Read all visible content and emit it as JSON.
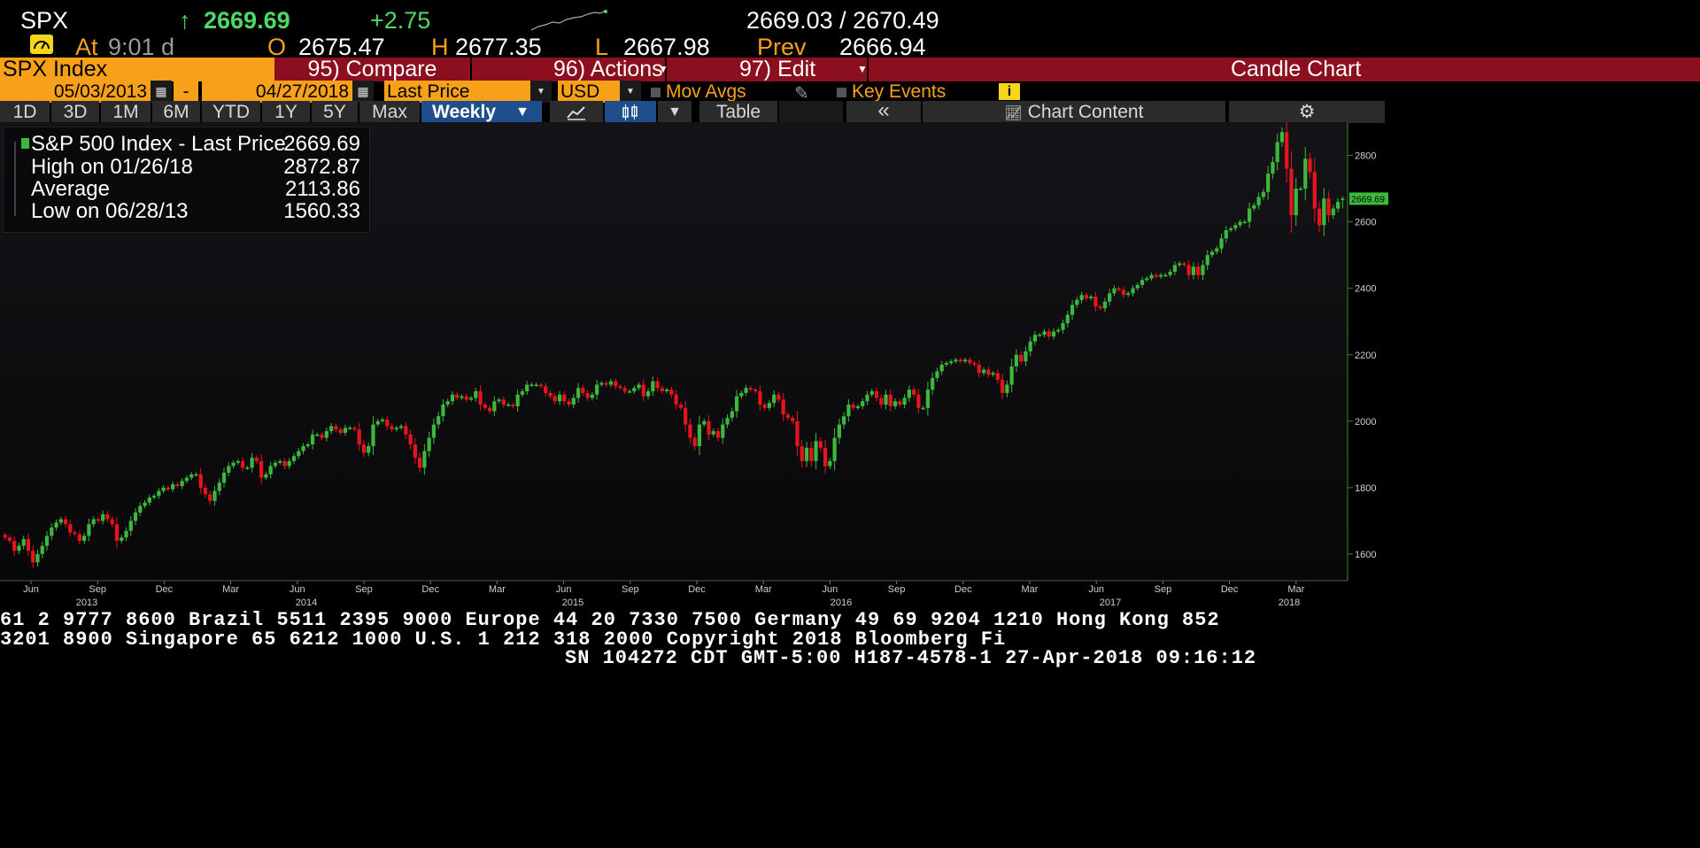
{
  "quote": {
    "ticker": "SPX",
    "arrow": "↑",
    "last": "2669.69",
    "change": "+2.75",
    "bid_ask": "2669.03 / 2670.49",
    "at_label": "At",
    "at_time": "9:01 d",
    "open_label": "O",
    "open": "2675.47",
    "high_label": "H",
    "high": "2677.35",
    "low_label": "L",
    "low": "2667.98",
    "prev_label": "Prev",
    "prev": "2666.94"
  },
  "toolbar": {
    "security": "SPX Index",
    "compare": "95) Compare",
    "actions": "96) Actions",
    "edit": "97) Edit",
    "chart_type": "Candle Chart"
  },
  "controls": {
    "start_date": "05/03/2013",
    "dash": "-",
    "end_date": "04/27/2018",
    "field": "Last Price",
    "currency": "USD",
    "mov_avgs": "Mov Avgs",
    "key_events": "Key Events",
    "info": "i"
  },
  "tabs": {
    "periods": [
      "1D",
      "3D",
      "1M",
      "6M",
      "YTD",
      "1Y",
      "5Y",
      "Max"
    ],
    "frequency": "Weekly",
    "table": "Table",
    "collapse": "«",
    "chart_content": "Chart Content"
  },
  "legend": {
    "rows": [
      {
        "label": "S&P 500 Index - Last Price",
        "value": "2669.69"
      },
      {
        "label": "High on 01/26/18",
        "value": "2872.87"
      },
      {
        "label": "Average",
        "value": "2113.86"
      },
      {
        "label": "Low on 06/28/13",
        "value": "1560.33"
      }
    ]
  },
  "colors": {
    "up": "#3cb93c",
    "down": "#e8141c",
    "accent": "#f7a11a",
    "bar_red": "#8b0f1e"
  },
  "chart_data": {
    "type": "candlestick",
    "frequency": "Weekly",
    "series_name": "S&P 500 Index - Last Price",
    "last_label": "2669.69",
    "ylim": [
      1520,
      2900
    ],
    "yticks": [
      1600,
      1800,
      2000,
      2200,
      2400,
      2600,
      2800
    ],
    "x_months": [
      "Jun",
      "Sep",
      "Dec",
      "Mar",
      "Jun",
      "Sep",
      "Dec",
      "Mar",
      "Jun",
      "Sep",
      "Dec",
      "Mar",
      "Jun",
      "Sep",
      "Dec",
      "Mar",
      "Jun",
      "Sep",
      "Dec",
      "Mar"
    ],
    "x_years": [
      "2013",
      "2014",
      "2015",
      "2016",
      "2017",
      "2018"
    ],
    "closes": [
      1650,
      1640,
      1610,
      1625,
      1645,
      1610,
      1575,
      1600,
      1625,
      1655,
      1680,
      1695,
      1705,
      1690,
      1665,
      1660,
      1640,
      1655,
      1690,
      1705,
      1700,
      1720,
      1705,
      1690,
      1640,
      1650,
      1670,
      1700,
      1725,
      1745,
      1755,
      1770,
      1775,
      1790,
      1800,
      1795,
      1810,
      1805,
      1820,
      1830,
      1840,
      1840,
      1800,
      1780,
      1760,
      1790,
      1815,
      1845,
      1865,
      1875,
      1880,
      1860,
      1860,
      1890,
      1880,
      1830,
      1840,
      1865,
      1875,
      1880,
      1865,
      1880,
      1895,
      1910,
      1925,
      1930,
      1960,
      1960,
      1950,
      1970,
      1985,
      1975,
      1965,
      1980,
      1980,
      1975,
      1930,
      1905,
      1925,
      1990,
      2000,
      2005,
      1985,
      1975,
      1980,
      1985,
      1960,
      1930,
      1890,
      1860,
      1910,
      1950,
      1990,
      2015,
      2050,
      2060,
      2080,
      2070,
      2075,
      2065,
      2070,
      2090,
      2050,
      2040,
      2030,
      2060,
      2065,
      2050,
      2050,
      2045,
      2080,
      2090,
      2110,
      2110,
      2110,
      2105,
      2085,
      2075,
      2060,
      2080,
      2060,
      2050,
      2070,
      2100,
      2085,
      2070,
      2080,
      2110,
      2115,
      2110,
      2120,
      2105,
      2100,
      2090,
      2090,
      2100,
      2110,
      2075,
      2090,
      2120,
      2100,
      2090,
      2095,
      2080,
      2050,
      2040,
      1990,
      1950,
      1925,
      1990,
      2000,
      1960,
      1970,
      1950,
      1990,
      2010,
      2030,
      2075,
      2085,
      2100,
      2095,
      2090,
      2050,
      2040,
      2055,
      2080,
      2065,
      2020,
      2010,
      2000,
      1925,
      1880,
      1920,
      1880,
      1940,
      1920,
      1865,
      1880,
      1950,
      1990,
      2015,
      2050,
      2040,
      2045,
      2060,
      2080,
      2090,
      2070,
      2050,
      2080,
      2045,
      2060,
      2050,
      2070,
      2095,
      2080,
      2040,
      2040,
      2095,
      2130,
      2150,
      2170,
      2175,
      2180,
      2185,
      2180,
      2185,
      2175,
      2170,
      2145,
      2155,
      2140,
      2145,
      2125,
      2085,
      2110,
      2165,
      2200,
      2180,
      2210,
      2240,
      2260,
      2260,
      2270,
      2255,
      2270,
      2275,
      2295,
      2320,
      2350,
      2365,
      2380,
      2370,
      2375,
      2345,
      2340,
      2360,
      2385,
      2400,
      2395,
      2380,
      2385,
      2400,
      2410,
      2425,
      2430,
      2440,
      2435,
      2440,
      2440,
      2450,
      2470,
      2475,
      2470,
      2440,
      2465,
      2440,
      2470,
      2500,
      2510,
      2520,
      2550,
      2575,
      2580,
      2590,
      2600,
      2600,
      2640,
      2650,
      2675,
      2690,
      2745,
      2780,
      2840,
      2870,
      2760,
      2620,
      2700,
      2700,
      2790,
      2750,
      2640,
      2590,
      2670,
      2620,
      2640,
      2660,
      2670
    ],
    "last_week_open": 2670,
    "last_week_high": 2677,
    "last_week_low": 2640
  }
}
